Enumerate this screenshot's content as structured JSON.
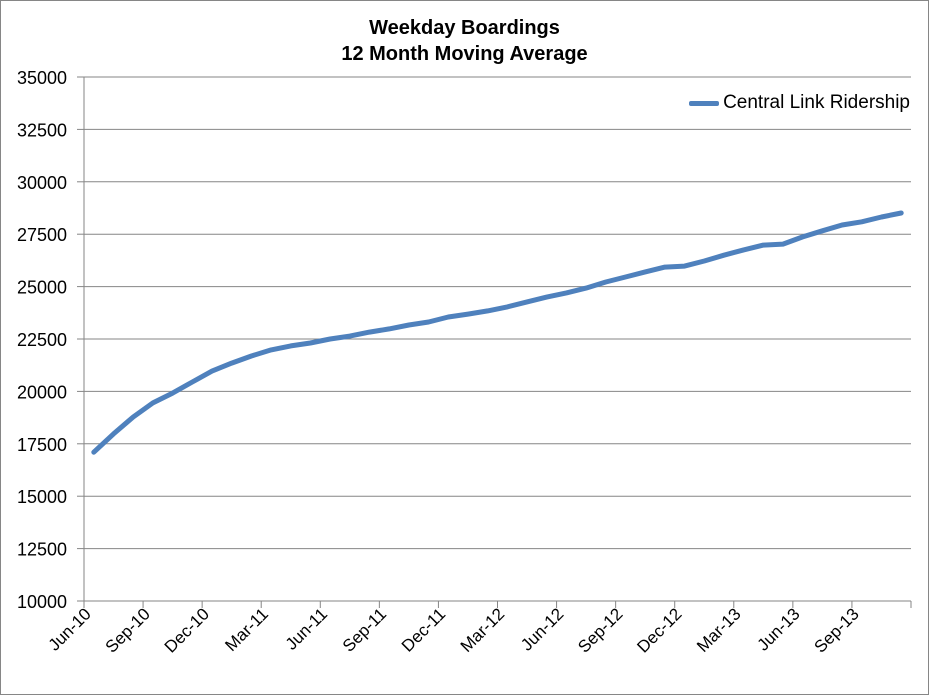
{
  "chart_data": {
    "type": "line",
    "title": "Weekday Boardings",
    "subtitle": "12 Month Moving Average",
    "title_lines": [
      "Weekday Boardings",
      "12 Month Moving Average"
    ],
    "xlabel": "",
    "ylabel": "",
    "ylim": [
      10000,
      35000
    ],
    "yticks": [
      10000,
      12500,
      15000,
      17500,
      20000,
      22500,
      25000,
      27500,
      30000,
      32500,
      35000
    ],
    "xtick_labels": [
      "Jun-10",
      "Sep-10",
      "Dec-10",
      "Mar-11",
      "Jun-11",
      "Sep-11",
      "Dec-11",
      "Mar-12",
      "Jun-12",
      "Sep-12",
      "Dec-12",
      "Mar-13",
      "Jun-13",
      "Sep-13"
    ],
    "grid": {
      "horizontal": true,
      "vertical": false
    },
    "legend_position": "top-right",
    "line_color": "#4f81bd",
    "x": [
      "Jun-10",
      "Jul-10",
      "Aug-10",
      "Sep-10",
      "Oct-10",
      "Nov-10",
      "Dec-10",
      "Jan-11",
      "Feb-11",
      "Mar-11",
      "Apr-11",
      "May-11",
      "Jun-11",
      "Jul-11",
      "Aug-11",
      "Sep-11",
      "Oct-11",
      "Nov-11",
      "Dec-11",
      "Jan-12",
      "Feb-12",
      "Mar-12",
      "Apr-12",
      "May-12",
      "Jun-12",
      "Jul-12",
      "Aug-12",
      "Sep-12",
      "Oct-12",
      "Nov-12",
      "Dec-12",
      "Jan-13",
      "Feb-13",
      "Mar-13",
      "Apr-13",
      "May-13",
      "Jun-13",
      "Jul-13",
      "Aug-13",
      "Sep-13",
      "Oct-13",
      "Nov-13"
    ],
    "series": [
      {
        "name": "Central Link Ridership",
        "color": "#4f81bd",
        "values": [
          17100,
          17970,
          18780,
          19450,
          19920,
          20450,
          20970,
          21350,
          21690,
          21980,
          22170,
          22310,
          22500,
          22640,
          22830,
          22980,
          23170,
          23310,
          23550,
          23690,
          23840,
          24030,
          24270,
          24500,
          24700,
          24930,
          25220,
          25460,
          25700,
          25930,
          25980,
          26220,
          26500,
          26750,
          26980,
          27030,
          27370,
          27660,
          27940,
          28090,
          28320,
          28510
        ]
      }
    ]
  },
  "legend": {
    "label": "Central Link Ridership"
  }
}
